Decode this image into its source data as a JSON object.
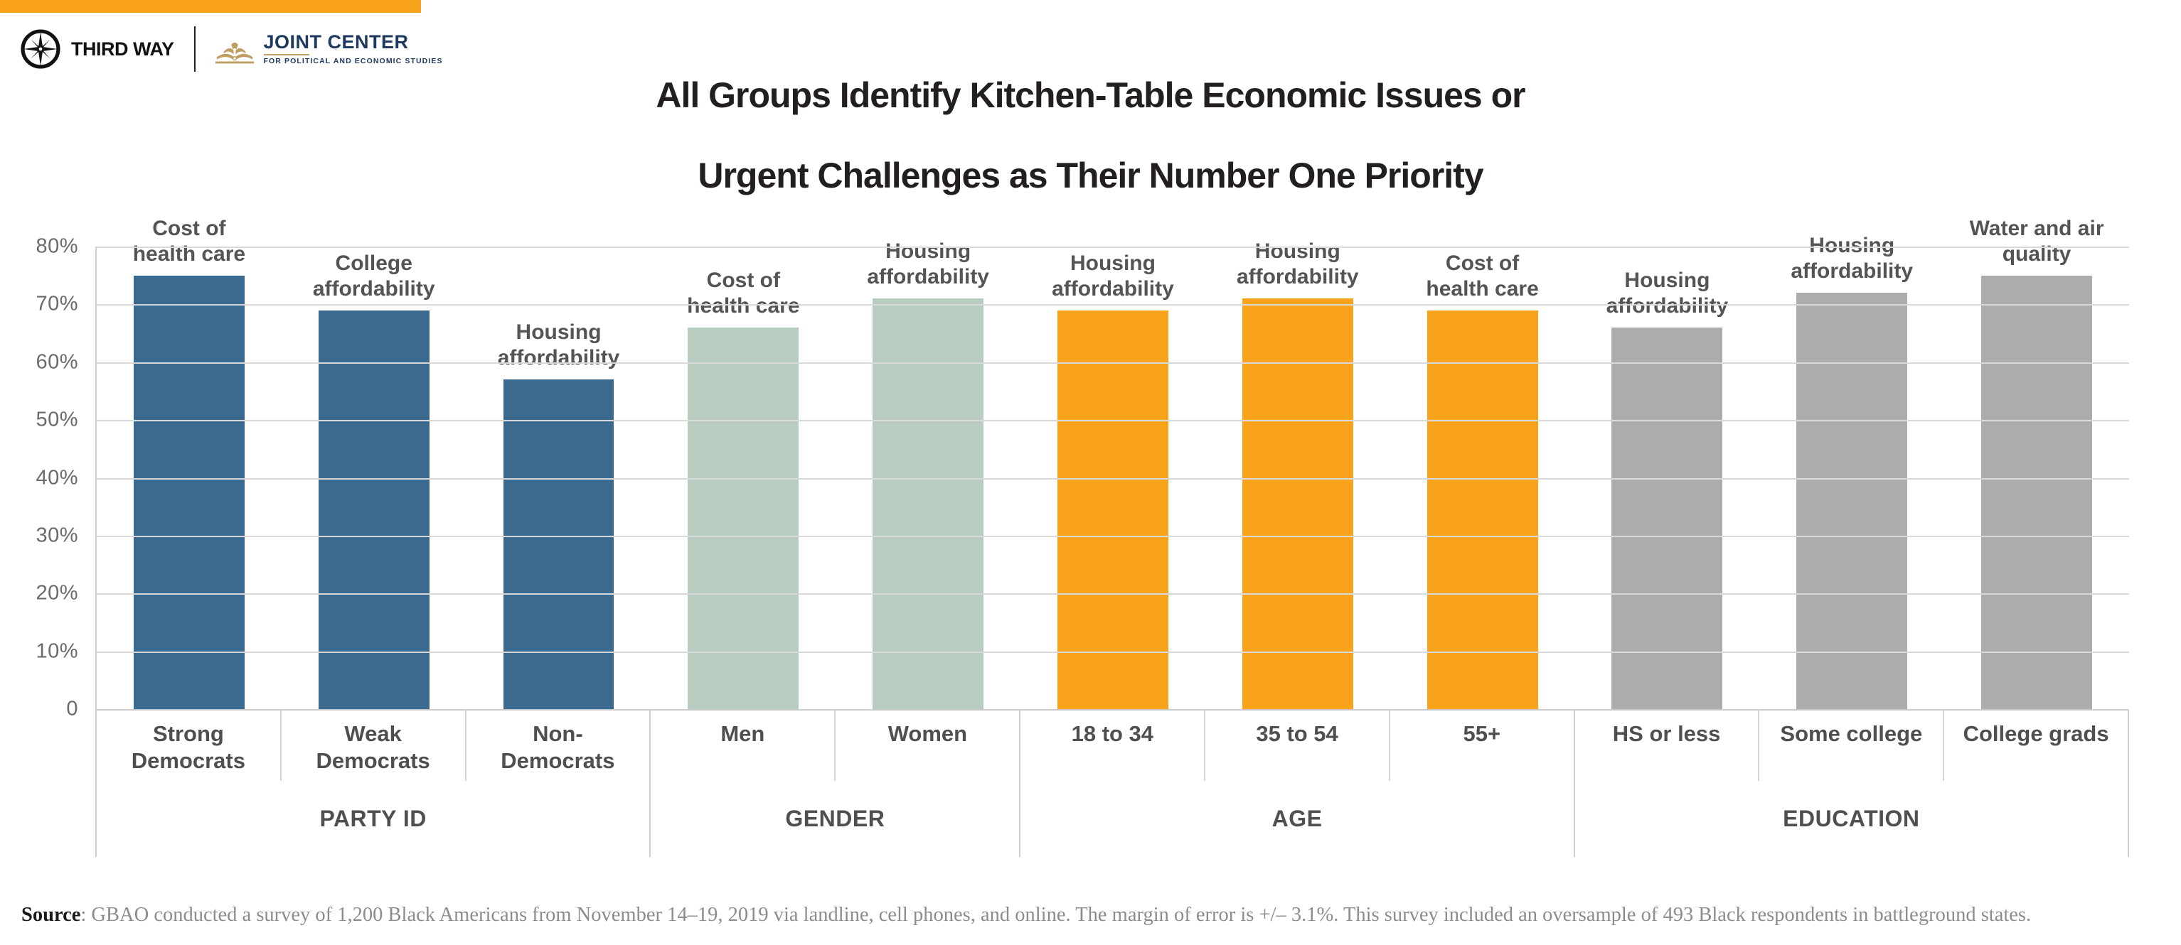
{
  "header": {
    "banner_color": "#F9A21B",
    "third_way_label": "THIRD WAY",
    "joint_center_label": "JOINT CENTER",
    "joint_center_tagline": "FOR POLITICAL AND ECONOMIC STUDIES",
    "third_way_color": "#111111",
    "joint_center_navy": "#1E3A60",
    "joint_center_gold": "#BF9E62"
  },
  "title": {
    "line1": "All Groups Identify Kitchen-Table Economic Issues or",
    "line2": "Urgent Challenges as Their Number One Priority"
  },
  "chart_data": {
    "type": "bar",
    "title": "All Groups Identify Kitchen-Table Economic Issues or Urgent Challenges as Their Number One Priority",
    "unit": "percent",
    "ylim": [
      0,
      80
    ],
    "ytick_labels": [
      "80%",
      "70%",
      "60%",
      "50%",
      "40%",
      "30%",
      "20%",
      "10%",
      "0"
    ],
    "grid": true,
    "gridline_color": "#D9D9D9",
    "legend": "none",
    "groups": [
      {
        "label": "PARTY ID",
        "color": "#3B6A91",
        "bars": [
          {
            "category": "Strong\nDemocrats",
            "issue": "Cost of\nhealth care",
            "value": 75
          },
          {
            "category": "Weak\nDemocrats",
            "issue": "College\naffordability",
            "value": 69
          },
          {
            "category": "Non-\nDemocrats",
            "issue": "Housing\naffordability",
            "value": 57
          }
        ]
      },
      {
        "label": "GENDER",
        "color": "#B8CCC0",
        "bars": [
          {
            "category": "Men",
            "issue": "Cost of\nhealth care",
            "value": 66
          },
          {
            "category": "Women",
            "issue": "Housing\naffordability",
            "value": 71
          }
        ]
      },
      {
        "label": "AGE",
        "color": "#F9A21B",
        "bars": [
          {
            "category": "18 to 34",
            "issue": "Housing\naffordability",
            "value": 69
          },
          {
            "category": "35 to 54",
            "issue": "Housing\naffordability",
            "value": 71
          },
          {
            "category": "55+",
            "issue": "Cost of\nhealth care",
            "value": 69
          }
        ]
      },
      {
        "label": "EDUCATION",
        "color": "#ACACAC",
        "bars": [
          {
            "category": "HS or less",
            "issue": "Housing\naffordability",
            "value": 66
          },
          {
            "category": "Some college",
            "issue": "Housing\naffordability",
            "value": 72
          },
          {
            "category": "College grads",
            "issue": "Water and air\nquality",
            "value": 75
          }
        ]
      }
    ]
  },
  "source": {
    "label": "Source",
    "text": ": GBAO conducted a survey of 1,200 Black Americans from November 14–19, 2019 via landline, cell phones, and online. The margin of error is +/– 3.1%. This survey included an oversample of 493 Black respondents in battleground states."
  }
}
